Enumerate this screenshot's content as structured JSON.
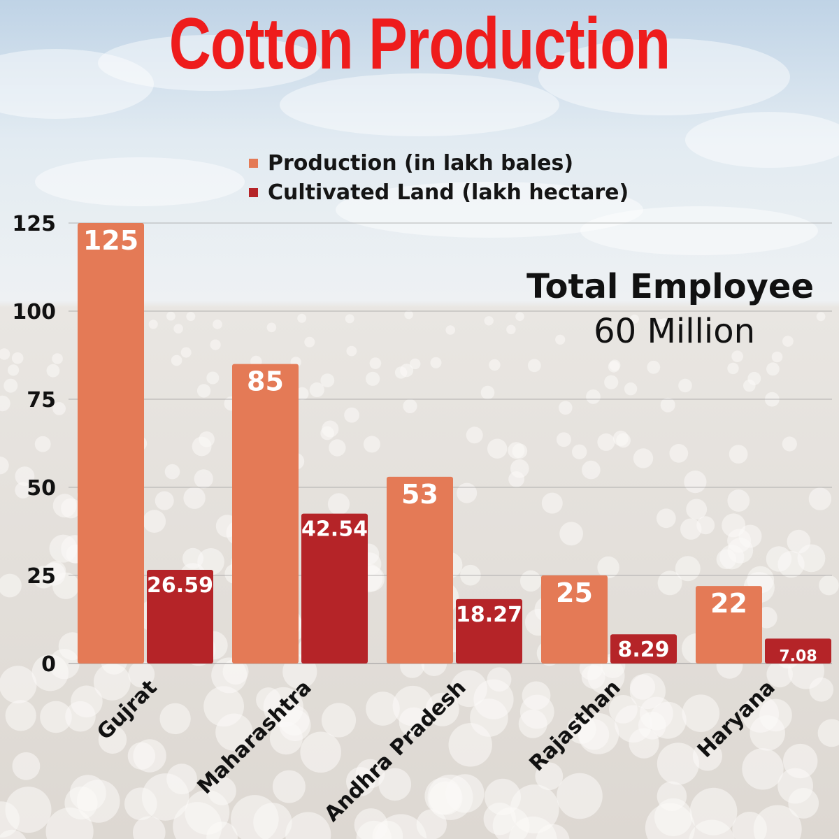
{
  "title": "Cotton Production",
  "callout": {
    "heading": "Total Employee",
    "value": "60 Million"
  },
  "colors": {
    "title": "#ee1c1c",
    "production": "#e47a56",
    "land": "#b52428",
    "axis_text": "#111111"
  },
  "chart_data": {
    "type": "bar",
    "categories": [
      "Gujrat",
      "Maharashtra",
      "Andhra Pradesh",
      "Rajasthan",
      "Haryana"
    ],
    "series": [
      {
        "name": "Production (in lakh bales)",
        "values": [
          125,
          85,
          53,
          25,
          22
        ],
        "labels": [
          "125",
          "85",
          "53",
          "25",
          "22"
        ]
      },
      {
        "name": "Cultivated Land (lakh hectare)",
        "values": [
          26.59,
          42.54,
          18.27,
          8.29,
          7.08
        ],
        "labels": [
          "26.59",
          "42.54",
          "18.27",
          "8.29",
          "7.08"
        ]
      }
    ],
    "yticks": [
      0,
      25,
      50,
      75,
      100,
      125
    ],
    "ylim": [
      0,
      125
    ],
    "grid": true,
    "legend_position": "top-center"
  }
}
